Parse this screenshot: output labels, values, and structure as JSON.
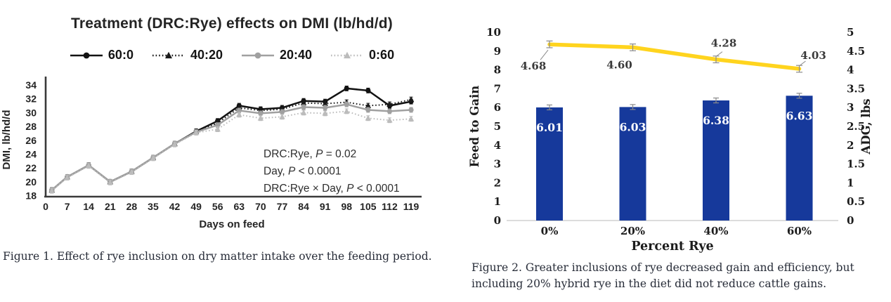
{
  "page": {
    "background": "#ffffff"
  },
  "chart_data": [
    {
      "id": "fig1-dmi",
      "type": "line",
      "title": "Treatment (DRC:Rye) effects on DMI (lb/hd/d)",
      "xlabel": "Days on feed",
      "ylabel": "DMI, lb/hd/d",
      "xlim": [
        0,
        122
      ],
      "ylim": [
        18,
        34
      ],
      "ytick_step": 2,
      "xticks": [
        0,
        7,
        14,
        21,
        28,
        35,
        42,
        49,
        56,
        63,
        70,
        77,
        84,
        91,
        98,
        105,
        112,
        119
      ],
      "x": [
        2,
        7,
        14,
        21,
        28,
        35,
        42,
        49,
        56,
        63,
        70,
        77,
        84,
        91,
        98,
        105,
        112,
        119
      ],
      "error": 0.35,
      "grid": false,
      "legend_position": "top",
      "series": [
        {
          "name": "60:0",
          "color": "#121212",
          "dash": "solid",
          "marker": "circle",
          "values": [
            18.8,
            20.7,
            22.4,
            20.0,
            21.5,
            23.5,
            25.5,
            27.3,
            28.8,
            31.0,
            30.5,
            30.7,
            31.7,
            31.6,
            33.5,
            33.2,
            31.0,
            31.6
          ]
        },
        {
          "name": "40:20",
          "color": "#1a1a1a",
          "dash": "dotted",
          "marker": "triangle",
          "values": [
            18.8,
            20.7,
            22.4,
            20.0,
            21.5,
            23.5,
            25.5,
            27.3,
            28.5,
            30.7,
            30.3,
            30.5,
            31.4,
            31.3,
            31.5,
            31.0,
            31.2,
            31.9
          ]
        },
        {
          "name": "20:40",
          "color": "#a0a0a0",
          "dash": "solid",
          "marker": "circle",
          "values": [
            18.8,
            20.7,
            22.4,
            20.0,
            21.5,
            23.5,
            25.5,
            27.2,
            28.2,
            30.3,
            29.9,
            30.1,
            30.8,
            30.7,
            31.2,
            30.4,
            30.2,
            30.4
          ]
        },
        {
          "name": "0:60",
          "color": "#bcbcbc",
          "dash": "dotted",
          "marker": "triangle",
          "values": [
            18.7,
            20.6,
            22.3,
            19.9,
            21.4,
            23.4,
            25.4,
            27.1,
            27.6,
            29.7,
            29.2,
            29.4,
            30.0,
            29.9,
            30.2,
            29.2,
            28.9,
            29.1
          ]
        }
      ],
      "annotation": [
        "DRC:Rye, P = 0.02",
        "Day, P < 0.0001",
        "DRC:Rye × Day, P < 0.0001"
      ],
      "caption": "Figure 1. Effect of rye inclusion on dry matter intake over the feeding period."
    },
    {
      "id": "fig2-feed-to-gain-adg",
      "type": "bar+line",
      "categories": [
        "0%",
        "20%",
        "40%",
        "60%"
      ],
      "xlabel": "Percent Rye",
      "left_axis": {
        "label": "Feed to Gain",
        "min": 0,
        "max": 10,
        "step": 1
      },
      "right_axis": {
        "label": "ADG, lbs",
        "min": 0,
        "max": 5,
        "step": 0.5
      },
      "grid": false,
      "bars": {
        "name": "Feed to Gain",
        "color": "#16399b",
        "label_color": "#ffffff",
        "error": 0.13,
        "values": [
          6.01,
          6.03,
          6.38,
          6.63
        ],
        "labels": [
          "6.01",
          "6.03",
          "6.38",
          "6.63"
        ]
      },
      "line": {
        "name": "ADG, lbs",
        "color": "#ffd41e",
        "error": 0.09,
        "values": [
          4.68,
          4.6,
          4.28,
          4.03
        ],
        "labels": [
          "4.68",
          "4.60",
          "4.28",
          "4.03"
        ],
        "label_side": [
          "below",
          "below",
          "above",
          "above"
        ],
        "leaders": [
          true,
          false,
          true,
          true
        ]
      },
      "caption": "Figure 2. Greater inclusions of rye decreased gain and efficiency, but including 20% hybrid rye in the diet did not reduce cattle gains."
    }
  ]
}
